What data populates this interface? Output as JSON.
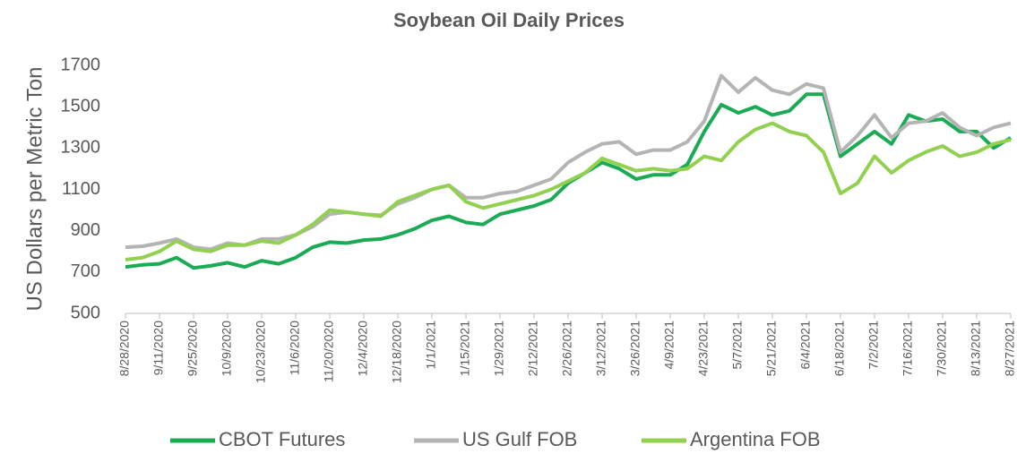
{
  "chart_data": {
    "type": "line",
    "title": "Soybean Oil Daily Prices",
    "y_label": "US Dollars per Metric Ton",
    "x": [
      "8/28/2020",
      "9/4/2020",
      "9/11/2020",
      "9/18/2020",
      "9/25/2020",
      "10/2/2020",
      "10/9/2020",
      "10/16/2020",
      "10/23/2020",
      "10/30/2020",
      "11/6/2020",
      "11/13/2020",
      "11/20/2020",
      "11/27/2020",
      "12/4/2020",
      "12/11/2020",
      "12/18/2020",
      "12/25/2020",
      "1/1/2021",
      "1/8/2021",
      "1/15/2021",
      "1/22/2021",
      "1/29/2021",
      "2/5/2021",
      "2/12/2021",
      "2/19/2021",
      "2/26/2021",
      "3/5/2021",
      "3/12/2021",
      "3/19/2021",
      "3/26/2021",
      "4/2/2021",
      "4/9/2021",
      "4/16/2021",
      "4/23/2021",
      "4/30/2021",
      "5/7/2021",
      "5/14/2021",
      "5/21/2021",
      "5/28/2021",
      "6/4/2021",
      "6/11/2021",
      "6/18/2021",
      "6/25/2021",
      "7/2/2021",
      "7/9/2021",
      "7/16/2021",
      "7/23/2021",
      "7/30/2021",
      "8/6/2021",
      "8/13/2021",
      "8/20/2021",
      "8/27/2021"
    ],
    "series": [
      {
        "name": "CBOT Futures",
        "color": "#1aab54",
        "values": [
          725,
          735,
          740,
          770,
          720,
          730,
          745,
          725,
          755,
          740,
          770,
          820,
          845,
          840,
          855,
          860,
          880,
          910,
          950,
          970,
          940,
          930,
          980,
          1000,
          1020,
          1050,
          1130,
          1180,
          1230,
          1200,
          1150,
          1170,
          1170,
          1220,
          1380,
          1510,
          1470,
          1500,
          1460,
          1480,
          1560,
          1560,
          1260,
          1320,
          1380,
          1320,
          1460,
          1430,
          1440,
          1380,
          1380,
          1300,
          1350
        ]
      },
      {
        "name": "US Gulf FOB",
        "color": "#b4b4b4",
        "values": [
          820,
          825,
          840,
          860,
          820,
          810,
          840,
          830,
          860,
          860,
          880,
          920,
          980,
          990,
          980,
          975,
          1030,
          1060,
          1100,
          1120,
          1060,
          1060,
          1080,
          1090,
          1120,
          1150,
          1230,
          1280,
          1320,
          1330,
          1270,
          1290,
          1290,
          1330,
          1430,
          1650,
          1570,
          1640,
          1580,
          1560,
          1610,
          1590,
          1280,
          1360,
          1460,
          1350,
          1420,
          1430,
          1470,
          1400,
          1360,
          1400,
          1420
        ]
      },
      {
        "name": "Argentina FOB",
        "color": "#92d050",
        "values": [
          760,
          770,
          800,
          850,
          810,
          800,
          830,
          830,
          850,
          840,
          880,
          930,
          1000,
          990,
          980,
          970,
          1040,
          1070,
          1100,
          1120,
          1040,
          1010,
          1030,
          1050,
          1070,
          1100,
          1140,
          1180,
          1250,
          1220,
          1190,
          1200,
          1190,
          1200,
          1260,
          1240,
          1330,
          1390,
          1420,
          1380,
          1360,
          1280,
          1080,
          1130,
          1260,
          1180,
          1240,
          1280,
          1310,
          1260,
          1280,
          1320,
          1340
        ]
      }
    ],
    "xlim": [
      "8/28/2020",
      "8/27/2021"
    ],
    "xticks": [
      "8/28/2020",
      "9/11/2020",
      "9/25/2020",
      "10/9/2020",
      "10/23/2020",
      "11/6/2020",
      "11/20/2020",
      "12/4/2020",
      "12/18/2020",
      "1/1/2021",
      "1/15/2021",
      "1/29/2021",
      "2/12/2021",
      "2/26/2021",
      "3/12/2021",
      "3/26/2021",
      "4/9/2021",
      "4/23/2021",
      "5/7/2021",
      "5/21/2021",
      "6/4/2021",
      "6/18/2021",
      "7/2/2021",
      "7/16/2021",
      "7/30/2021",
      "8/13/2021",
      "8/27/2021"
    ],
    "ylim": [
      500,
      1700
    ],
    "yticks": [
      500,
      700,
      900,
      1100,
      1300,
      1500,
      1700
    ],
    "grid": false,
    "legend": "bottom"
  }
}
